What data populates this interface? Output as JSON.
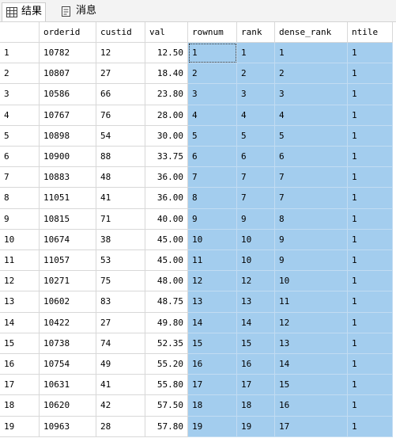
{
  "tabs": [
    "结果",
    "消息"
  ],
  "table": {
    "columns": [
      "orderid",
      "custid",
      "val",
      "rownum",
      "rank",
      "dense_rank",
      "ntile"
    ],
    "rows": [
      [
        "1",
        "10782",
        "12",
        "12.50",
        "1",
        "1",
        "1",
        "1"
      ],
      [
        "2",
        "10807",
        "27",
        "18.40",
        "2",
        "2",
        "2",
        "1"
      ],
      [
        "3",
        "10586",
        "66",
        "23.80",
        "3",
        "3",
        "3",
        "1"
      ],
      [
        "4",
        "10767",
        "76",
        "28.00",
        "4",
        "4",
        "4",
        "1"
      ],
      [
        "5",
        "10898",
        "54",
        "30.00",
        "5",
        "5",
        "5",
        "1"
      ],
      [
        "6",
        "10900",
        "88",
        "33.75",
        "6",
        "6",
        "6",
        "1"
      ],
      [
        "7",
        "10883",
        "48",
        "36.00",
        "7",
        "7",
        "7",
        "1"
      ],
      [
        "8",
        "11051",
        "41",
        "36.00",
        "8",
        "7",
        "7",
        "1"
      ],
      [
        "9",
        "10815",
        "71",
        "40.00",
        "9",
        "9",
        "8",
        "1"
      ],
      [
        "10",
        "10674",
        "38",
        "45.00",
        "10",
        "10",
        "9",
        "1"
      ],
      [
        "11",
        "11057",
        "53",
        "45.00",
        "11",
        "10",
        "9",
        "1"
      ],
      [
        "12",
        "10271",
        "75",
        "48.00",
        "12",
        "12",
        "10",
        "1"
      ],
      [
        "13",
        "10602",
        "83",
        "48.75",
        "13",
        "13",
        "11",
        "1"
      ],
      [
        "14",
        "10422",
        "27",
        "49.80",
        "14",
        "14",
        "12",
        "1"
      ],
      [
        "15",
        "10738",
        "74",
        "52.35",
        "15",
        "15",
        "13",
        "1"
      ],
      [
        "16",
        "10754",
        "49",
        "55.20",
        "16",
        "16",
        "14",
        "1"
      ],
      [
        "17",
        "10631",
        "41",
        "55.80",
        "17",
        "17",
        "15",
        "1"
      ],
      [
        "18",
        "10620",
        "42",
        "57.50",
        "18",
        "18",
        "16",
        "1"
      ],
      [
        "19",
        "10963",
        "28",
        "57.80",
        "19",
        "19",
        "17",
        "1"
      ]
    ]
  }
}
